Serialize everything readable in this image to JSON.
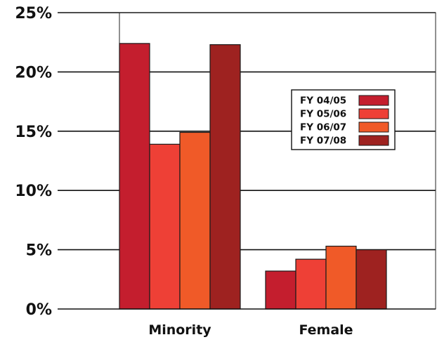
{
  "chart_data": {
    "type": "bar",
    "title": "",
    "xlabel": "",
    "ylabel": "",
    "categories": [
      "Minority",
      "Female"
    ],
    "series": [
      {
        "name": "FY 04/05",
        "values": [
          22.4,
          3.2
        ],
        "color": "#c41e2e"
      },
      {
        "name": "FY 05/06",
        "values": [
          13.9,
          4.2
        ],
        "color": "#ee4036"
      },
      {
        "name": "FY 06/07",
        "values": [
          14.9,
          5.3
        ],
        "color": "#f05a28"
      },
      {
        "name": "FY 07/08",
        "values": [
          22.3,
          5.0
        ],
        "color": "#9e2220"
      }
    ],
    "ylim": [
      0,
      25
    ],
    "yticks": [
      0,
      5,
      10,
      15,
      20,
      25
    ],
    "ytick_labels": [
      "0%",
      "5%",
      "10%",
      "15%",
      "20%",
      "25%"
    ],
    "grid": true,
    "legend_position": "top-right"
  }
}
